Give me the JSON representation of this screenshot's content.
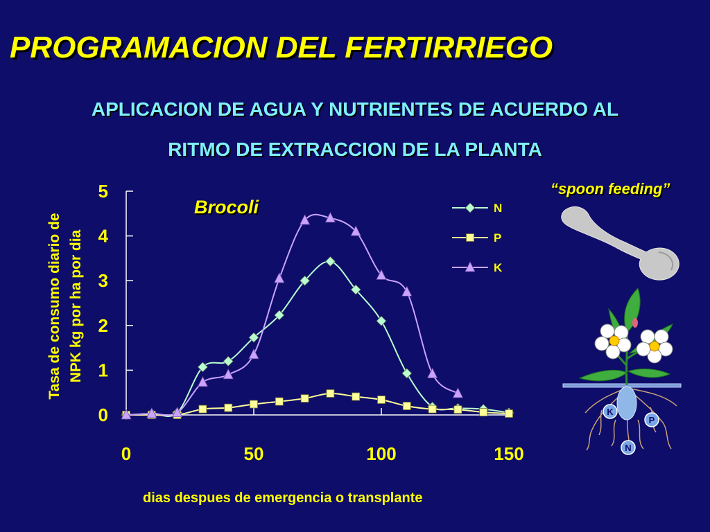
{
  "slide": {
    "title": "PROGRAMACION DEL FERTIRRIEGO",
    "subtitle_line1": "APLICACION DE AGUA Y NUTRIENTES DE ACUERDO AL",
    "subtitle_line2": "RITMO DE EXTRACCION DE LA PLANTA",
    "spoon_caption": "“spoon feeding”",
    "nutrient_badges": {
      "k": "K",
      "p": "P",
      "n": "N"
    }
  },
  "chart_data": {
    "type": "line",
    "annotation": "Brocoli",
    "xlabel": "dias despues de emergencia o transplante",
    "ylabel_line1": "Tasa de consumo diario de",
    "ylabel_line2": "NPK kg por ha por dia",
    "xlim": [
      0,
      150
    ],
    "ylim": [
      0,
      5
    ],
    "xticks": [
      0,
      50,
      100,
      150
    ],
    "yticks": [
      0,
      1,
      2,
      3,
      4,
      5
    ],
    "legend_position": "top-right",
    "grid": false,
    "series": [
      {
        "name": "N",
        "marker": "diamond",
        "color": "#b8ffd0",
        "x": [
          0,
          10,
          20,
          30,
          40,
          50,
          60,
          70,
          80,
          90,
          100,
          110,
          120,
          130,
          140,
          150
        ],
        "y": [
          0.0,
          0.03,
          0.05,
          1.07,
          1.2,
          1.73,
          2.23,
          3.0,
          3.43,
          2.8,
          2.1,
          0.93,
          0.18,
          0.15,
          0.13,
          0.05
        ]
      },
      {
        "name": "P",
        "marker": "square",
        "color": "#ffff99",
        "x": [
          0,
          10,
          20,
          30,
          40,
          50,
          60,
          70,
          80,
          90,
          100,
          110,
          120,
          130,
          140,
          150
        ],
        "y": [
          0.0,
          0.0,
          0.0,
          0.13,
          0.16,
          0.24,
          0.3,
          0.37,
          0.48,
          0.41,
          0.34,
          0.2,
          0.13,
          0.12,
          0.06,
          0.03
        ]
      },
      {
        "name": "K",
        "marker": "triangle",
        "color": "#c9a3ff",
        "x": [
          0,
          10,
          20,
          30,
          40,
          50,
          60,
          70,
          80,
          90,
          100,
          110,
          120,
          130
        ],
        "y": [
          0.0,
          0.03,
          0.05,
          0.73,
          0.9,
          1.35,
          3.05,
          4.35,
          4.4,
          4.1,
          3.12,
          2.75,
          0.92,
          0.48
        ]
      }
    ]
  }
}
